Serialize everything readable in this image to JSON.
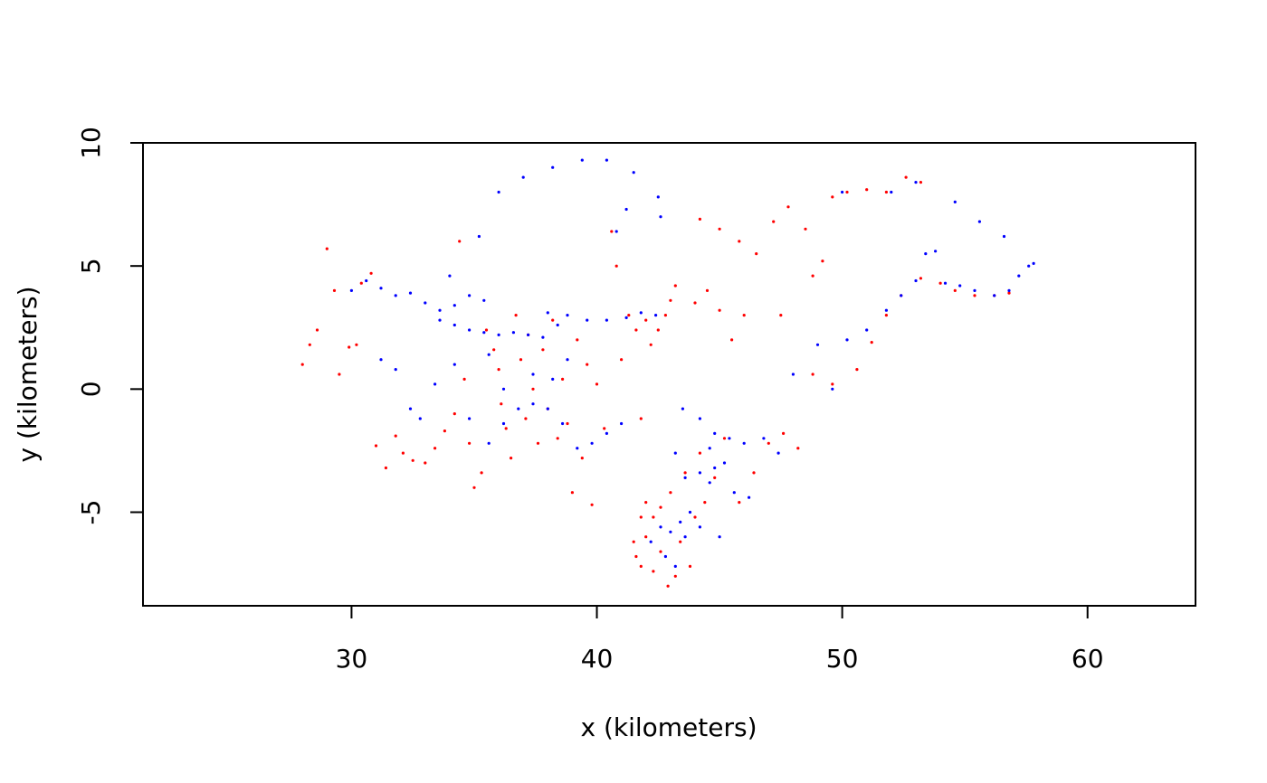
{
  "chart_data": {
    "type": "scatter",
    "title": "",
    "xlabel": "x (kilometers)",
    "ylabel": "y (kilometers)",
    "xlim": [
      21.5,
      64.4
    ],
    "ylim": [
      -8.8,
      10.0
    ],
    "x_ticks": [
      30,
      40,
      50,
      60
    ],
    "y_ticks": [
      -5,
      0,
      5,
      10
    ],
    "x_tick_labels": [
      "30",
      "40",
      "50",
      "60"
    ],
    "y_tick_labels": [
      "-5",
      "0",
      "5",
      "10"
    ],
    "grid": false,
    "legend": "none",
    "series": [
      {
        "color": "#ff0000",
        "points": [
          [
            28.0,
            1.0
          ],
          [
            28.3,
            1.8
          ],
          [
            28.6,
            2.4
          ],
          [
            29.0,
            5.7
          ],
          [
            29.3,
            4.0
          ],
          [
            29.5,
            0.6
          ],
          [
            29.9,
            1.7
          ],
          [
            30.2,
            1.8
          ],
          [
            30.4,
            4.3
          ],
          [
            30.8,
            4.7
          ],
          [
            31.0,
            -2.3
          ],
          [
            31.4,
            -3.2
          ],
          [
            31.8,
            -1.9
          ],
          [
            32.1,
            -2.6
          ],
          [
            32.5,
            -2.9
          ],
          [
            33.0,
            -3.0
          ],
          [
            33.4,
            -2.4
          ],
          [
            33.8,
            -1.7
          ],
          [
            34.2,
            -1.0
          ],
          [
            34.4,
            6.0
          ],
          [
            34.6,
            0.4
          ],
          [
            34.8,
            -2.2
          ],
          [
            35.0,
            -4.0
          ],
          [
            35.3,
            -3.4
          ],
          [
            35.5,
            2.4
          ],
          [
            35.8,
            1.6
          ],
          [
            36.0,
            0.8
          ],
          [
            36.1,
            -0.6
          ],
          [
            36.3,
            -1.6
          ],
          [
            36.5,
            -2.8
          ],
          [
            36.7,
            3.0
          ],
          [
            36.9,
            1.2
          ],
          [
            37.1,
            -1.2
          ],
          [
            37.2,
            2.2
          ],
          [
            37.4,
            0.0
          ],
          [
            37.6,
            -2.2
          ],
          [
            37.8,
            1.6
          ],
          [
            38.0,
            -0.8
          ],
          [
            38.2,
            2.8
          ],
          [
            38.4,
            -2.0
          ],
          [
            38.6,
            0.4
          ],
          [
            38.8,
            -1.4
          ],
          [
            39.0,
            -4.2
          ],
          [
            39.2,
            2.0
          ],
          [
            39.4,
            -2.8
          ],
          [
            39.6,
            1.0
          ],
          [
            39.8,
            -4.7
          ],
          [
            40.0,
            0.2
          ],
          [
            40.3,
            -1.6
          ],
          [
            40.6,
            6.4
          ],
          [
            40.8,
            5.0
          ],
          [
            41.0,
            1.2
          ],
          [
            41.3,
            3.0
          ],
          [
            41.6,
            2.4
          ],
          [
            41.8,
            -1.2
          ],
          [
            42.0,
            2.8
          ],
          [
            42.2,
            1.8
          ],
          [
            42.5,
            2.4
          ],
          [
            42.8,
            3.0
          ],
          [
            43.0,
            3.6
          ],
          [
            43.2,
            4.2
          ],
          [
            44.0,
            3.5
          ],
          [
            44.5,
            4.0
          ],
          [
            45.0,
            3.2
          ],
          [
            45.5,
            2.0
          ],
          [
            46.0,
            3.0
          ],
          [
            44.2,
            6.9
          ],
          [
            45.0,
            6.5
          ],
          [
            45.8,
            6.0
          ],
          [
            46.5,
            5.5
          ],
          [
            47.2,
            6.8
          ],
          [
            47.8,
            7.4
          ],
          [
            48.5,
            6.5
          ],
          [
            49.2,
            5.2
          ],
          [
            48.8,
            4.6
          ],
          [
            49.6,
            7.8
          ],
          [
            50.2,
            8.0
          ],
          [
            51.0,
            8.1
          ],
          [
            51.8,
            8.0
          ],
          [
            52.6,
            8.6
          ],
          [
            53.2,
            8.4
          ],
          [
            47.5,
            3.0
          ],
          [
            48.8,
            0.6
          ],
          [
            49.6,
            0.2
          ],
          [
            50.6,
            0.8
          ],
          [
            51.2,
            1.9
          ],
          [
            51.8,
            3.0
          ],
          [
            52.4,
            3.8
          ],
          [
            53.2,
            4.5
          ],
          [
            54.0,
            4.3
          ],
          [
            54.6,
            4.0
          ],
          [
            55.4,
            3.8
          ],
          [
            56.2,
            3.8
          ],
          [
            56.8,
            3.9
          ],
          [
            48.2,
            -2.4
          ],
          [
            47.6,
            -1.8
          ],
          [
            47.0,
            -2.2
          ],
          [
            46.4,
            -3.4
          ],
          [
            45.8,
            -4.6
          ],
          [
            45.2,
            -2.0
          ],
          [
            44.8,
            -3.6
          ],
          [
            44.2,
            -2.6
          ],
          [
            43.6,
            -3.4
          ],
          [
            43.0,
            -4.2
          ],
          [
            42.6,
            -4.8
          ],
          [
            42.3,
            -5.2
          ],
          [
            41.8,
            -5.2
          ],
          [
            41.5,
            -6.2
          ],
          [
            41.6,
            -6.8
          ],
          [
            41.8,
            -7.2
          ],
          [
            42.0,
            -6.0
          ],
          [
            42.3,
            -7.4
          ],
          [
            42.6,
            -6.6
          ],
          [
            42.9,
            -8.0
          ],
          [
            43.2,
            -7.6
          ],
          [
            43.4,
            -6.2
          ],
          [
            43.8,
            -7.2
          ],
          [
            44.0,
            -5.2
          ],
          [
            44.4,
            -4.6
          ],
          [
            42.0,
            -4.6
          ]
        ]
      },
      {
        "color": "#0000ff",
        "points": [
          [
            30.0,
            4.0
          ],
          [
            30.6,
            4.4
          ],
          [
            31.2,
            4.1
          ],
          [
            31.8,
            3.8
          ],
          [
            32.4,
            3.9
          ],
          [
            33.0,
            3.5
          ],
          [
            33.6,
            3.2
          ],
          [
            34.2,
            3.4
          ],
          [
            34.8,
            3.8
          ],
          [
            35.4,
            3.6
          ],
          [
            33.6,
            2.8
          ],
          [
            34.2,
            2.6
          ],
          [
            34.8,
            2.4
          ],
          [
            35.4,
            2.3
          ],
          [
            36.0,
            2.2
          ],
          [
            36.6,
            2.3
          ],
          [
            37.2,
            2.2
          ],
          [
            37.8,
            2.1
          ],
          [
            38.4,
            2.6
          ],
          [
            38.0,
            3.1
          ],
          [
            38.8,
            3.0
          ],
          [
            39.6,
            2.8
          ],
          [
            40.4,
            2.8
          ],
          [
            41.2,
            2.9
          ],
          [
            41.8,
            3.1
          ],
          [
            42.4,
            3.0
          ],
          [
            31.2,
            1.2
          ],
          [
            31.8,
            0.8
          ],
          [
            32.4,
            -0.8
          ],
          [
            32.8,
            -1.2
          ],
          [
            33.4,
            0.2
          ],
          [
            34.2,
            1.0
          ],
          [
            34.8,
            -1.2
          ],
          [
            35.6,
            -2.2
          ],
          [
            36.2,
            -1.4
          ],
          [
            36.8,
            -0.8
          ],
          [
            37.4,
            -0.6
          ],
          [
            38.0,
            -0.8
          ],
          [
            38.6,
            -1.4
          ],
          [
            39.2,
            -2.4
          ],
          [
            39.8,
            -2.2
          ],
          [
            40.4,
            -1.8
          ],
          [
            41.0,
            -1.4
          ],
          [
            37.4,
            0.6
          ],
          [
            38.2,
            0.4
          ],
          [
            38.8,
            1.2
          ],
          [
            36.2,
            0.0
          ],
          [
            35.6,
            1.4
          ],
          [
            34.0,
            4.6
          ],
          [
            35.2,
            6.2
          ],
          [
            36.0,
            8.0
          ],
          [
            37.0,
            8.6
          ],
          [
            38.2,
            9.0
          ],
          [
            39.4,
            9.3
          ],
          [
            40.4,
            9.3
          ],
          [
            41.5,
            8.8
          ],
          [
            42.5,
            7.8
          ],
          [
            41.2,
            7.3
          ],
          [
            42.6,
            7.0
          ],
          [
            40.8,
            6.4
          ],
          [
            43.5,
            -0.8
          ],
          [
            44.2,
            -1.2
          ],
          [
            44.8,
            -1.8
          ],
          [
            45.4,
            -2.0
          ],
          [
            46.0,
            -2.2
          ],
          [
            46.8,
            -2.0
          ],
          [
            47.4,
            -2.6
          ],
          [
            45.2,
            -3.0
          ],
          [
            44.8,
            -3.2
          ],
          [
            44.2,
            -3.4
          ],
          [
            43.6,
            -3.6
          ],
          [
            43.2,
            -2.6
          ],
          [
            44.6,
            -3.8
          ],
          [
            45.6,
            -4.2
          ],
          [
            46.2,
            -4.4
          ],
          [
            43.8,
            -5.0
          ],
          [
            43.4,
            -5.4
          ],
          [
            43.0,
            -5.8
          ],
          [
            42.6,
            -5.6
          ],
          [
            42.2,
            -6.2
          ],
          [
            42.8,
            -6.8
          ],
          [
            43.2,
            -7.2
          ],
          [
            43.6,
            -6.0
          ],
          [
            44.2,
            -5.6
          ],
          [
            45.0,
            -6.0
          ],
          [
            44.6,
            -2.4
          ],
          [
            48.0,
            0.6
          ],
          [
            49.0,
            1.8
          ],
          [
            49.6,
            0.0
          ],
          [
            50.2,
            2.0
          ],
          [
            51.0,
            2.4
          ],
          [
            51.8,
            3.2
          ],
          [
            52.4,
            3.8
          ],
          [
            53.0,
            4.4
          ],
          [
            53.4,
            5.5
          ],
          [
            53.8,
            5.6
          ],
          [
            54.2,
            4.3
          ],
          [
            54.8,
            4.2
          ],
          [
            55.4,
            4.0
          ],
          [
            56.2,
            3.8
          ],
          [
            56.8,
            4.0
          ],
          [
            57.2,
            4.6
          ],
          [
            57.6,
            5.0
          ],
          [
            57.8,
            5.1
          ],
          [
            52.0,
            8.0
          ],
          [
            53.0,
            8.4
          ],
          [
            54.6,
            7.6
          ],
          [
            55.6,
            6.8
          ],
          [
            56.6,
            6.2
          ],
          [
            50.0,
            8.0
          ]
        ]
      }
    ]
  }
}
